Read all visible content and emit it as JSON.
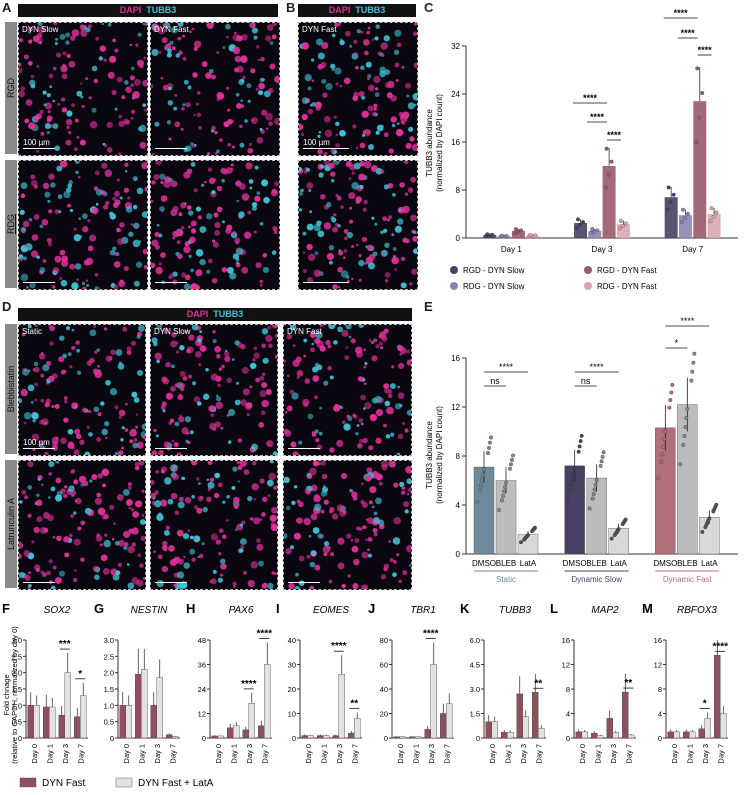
{
  "panels": {
    "A": "A",
    "B": "B",
    "C": "C",
    "D": "D",
    "E": "E",
    "F": "F",
    "G": "G",
    "H": "H",
    "I": "I",
    "J": "J",
    "K": "K",
    "L": "L",
    "M": "M"
  },
  "stain": {
    "dapi": "DAPI",
    "tubb3": "TUBB3"
  },
  "panel_a": {
    "rows": [
      "RGD",
      "RDG"
    ],
    "cols": [
      "DYN Slow",
      "DYN Fast"
    ],
    "scale": "100 µm"
  },
  "panel_b": {
    "col": "DYN Fast",
    "scale": "100 µm"
  },
  "panel_d": {
    "rows": [
      "Blebbistatin",
      "Latrunculin A"
    ],
    "cols": [
      "Static",
      "DYN Slow",
      "DYN Fast"
    ],
    "scale": "100 µm"
  },
  "colors": {
    "rgd_slow": "#4a3f63",
    "rgd_fast": "#9b5a6a",
    "rdg_slow": "#8b85b0",
    "rdg_fast": "#d9a6b0",
    "static": "#6e8a99",
    "dyn_fast": "#b0707a",
    "gray": "#bcbcbc",
    "lata": "#d9d9d9",
    "dapi": "#e0309a",
    "tubb3": "#3fc4d6"
  },
  "chart_data": [
    {
      "id": "C",
      "type": "bar",
      "ylabel": "TUBB3 abundance\n(normalized by DAPI count)",
      "ylim": [
        0,
        32
      ],
      "yticks": [
        0,
        8,
        16,
        24,
        32
      ],
      "categories": [
        "Day 1",
        "Day 3",
        "Day 7"
      ],
      "series": [
        {
          "name": "RGD - DYN Slow",
          "values": [
            0.5,
            2.5,
            6.8
          ]
        },
        {
          "name": "RDG - DYN Slow",
          "values": [
            0.3,
            1.2,
            3.8
          ]
        },
        {
          "name": "RGD - DYN Fast",
          "values": [
            1.2,
            12,
            22.8
          ]
        },
        {
          "name": "RDG - DYN Fast",
          "values": [
            0.4,
            2.3,
            4.0
          ]
        }
      ],
      "significance": [
        "****",
        "****",
        "****",
        "****",
        "****",
        "****"
      ]
    },
    {
      "id": "E",
      "type": "bar",
      "ylabel": "TUBB3 abundance\n(normalized by DAPI count)",
      "ylim": [
        0,
        16
      ],
      "yticks": [
        0,
        4,
        8,
        12,
        16
      ],
      "groups": [
        "Static",
        "Dynamic Slow",
        "Dynamic Fast"
      ],
      "categories": [
        "DMSO",
        "BLEB",
        "LatA"
      ],
      "values": [
        [
          7.1,
          6.0,
          1.6
        ],
        [
          7.2,
          6.2,
          2.1
        ],
        [
          10.3,
          12.2,
          3.0
        ]
      ],
      "significance": [
        "ns",
        "****",
        "ns",
        "****",
        "*",
        "****"
      ]
    },
    {
      "id": "F-M",
      "type": "bar",
      "ylabel": "Fold chnage\n(relative to GAPDH, normalized by day 0)",
      "categories": [
        "Day 0",
        "Day 1",
        "Day 3",
        "Day 7"
      ],
      "legend": [
        "DYN Fast",
        "DYN Fast + LatA"
      ],
      "genes": [
        {
          "name": "SOX2",
          "yticks": [
            "0",
            "0.5",
            "1.0",
            "1.5",
            "2.0",
            "2.5",
            "3.0"
          ],
          "ymax": 3,
          "a": [
            1.0,
            0.95,
            0.7,
            0.65
          ],
          "b": [
            1.0,
            0.95,
            2.0,
            1.3
          ],
          "sig": [
            "***",
            "*"
          ]
        },
        {
          "name": "NESTIN",
          "yticks": [
            "0",
            "0.5",
            "1.0",
            "1.5",
            "2.0",
            "2.5",
            "3.0"
          ],
          "ymax": 3,
          "a": [
            1.0,
            1.95,
            1.0,
            0.1
          ],
          "b": [
            1.0,
            2.1,
            1.85,
            0.05
          ],
          "sig": []
        },
        {
          "name": "PAX6",
          "yticks": [
            "0",
            "12",
            "24",
            "36",
            "48"
          ],
          "ymax": 48,
          "a": [
            1,
            5,
            4,
            6
          ],
          "b": [
            1,
            6,
            17,
            36
          ],
          "sig": [
            "****",
            "****"
          ]
        },
        {
          "name": "EOMES",
          "yticks": [
            "0",
            "10",
            "20",
            "30",
            "40"
          ],
          "ymax": 40,
          "a": [
            1,
            1,
            1,
            2
          ],
          "b": [
            1,
            1,
            26,
            8
          ],
          "sig": [
            "****",
            "**"
          ]
        },
        {
          "name": "TBR1",
          "yticks": [
            "0",
            "20",
            "40",
            "60",
            "80"
          ],
          "ymax": 80,
          "a": [
            1,
            1,
            7,
            20
          ],
          "b": [
            1,
            1,
            60,
            28
          ],
          "sig": [
            "****"
          ]
        },
        {
          "name": "TUBB3",
          "yticks": [
            "0",
            "1.5",
            "3.0",
            "4.5",
            "6.0"
          ],
          "ymax": 6,
          "a": [
            1.0,
            0.35,
            2.7,
            2.8
          ],
          "b": [
            1.0,
            0.35,
            1.3,
            0.6
          ],
          "sig": [
            "**"
          ]
        },
        {
          "name": "MAP2",
          "yticks": [
            "0",
            "4",
            "8",
            "12",
            "16"
          ],
          "ymax": 16,
          "a": [
            1,
            0.8,
            3.2,
            7.5
          ],
          "b": [
            1,
            0.4,
            0.9,
            0.5
          ],
          "sig": [
            "**"
          ]
        },
        {
          "name": "RBFOX3",
          "yticks": [
            "0",
            "4",
            "8",
            "12",
            "16"
          ],
          "ymax": 16,
          "a": [
            1,
            1,
            1.5,
            13.5
          ],
          "b": [
            1,
            1,
            3.2,
            4
          ],
          "sig": [
            "*",
            "****"
          ]
        }
      ]
    }
  ]
}
